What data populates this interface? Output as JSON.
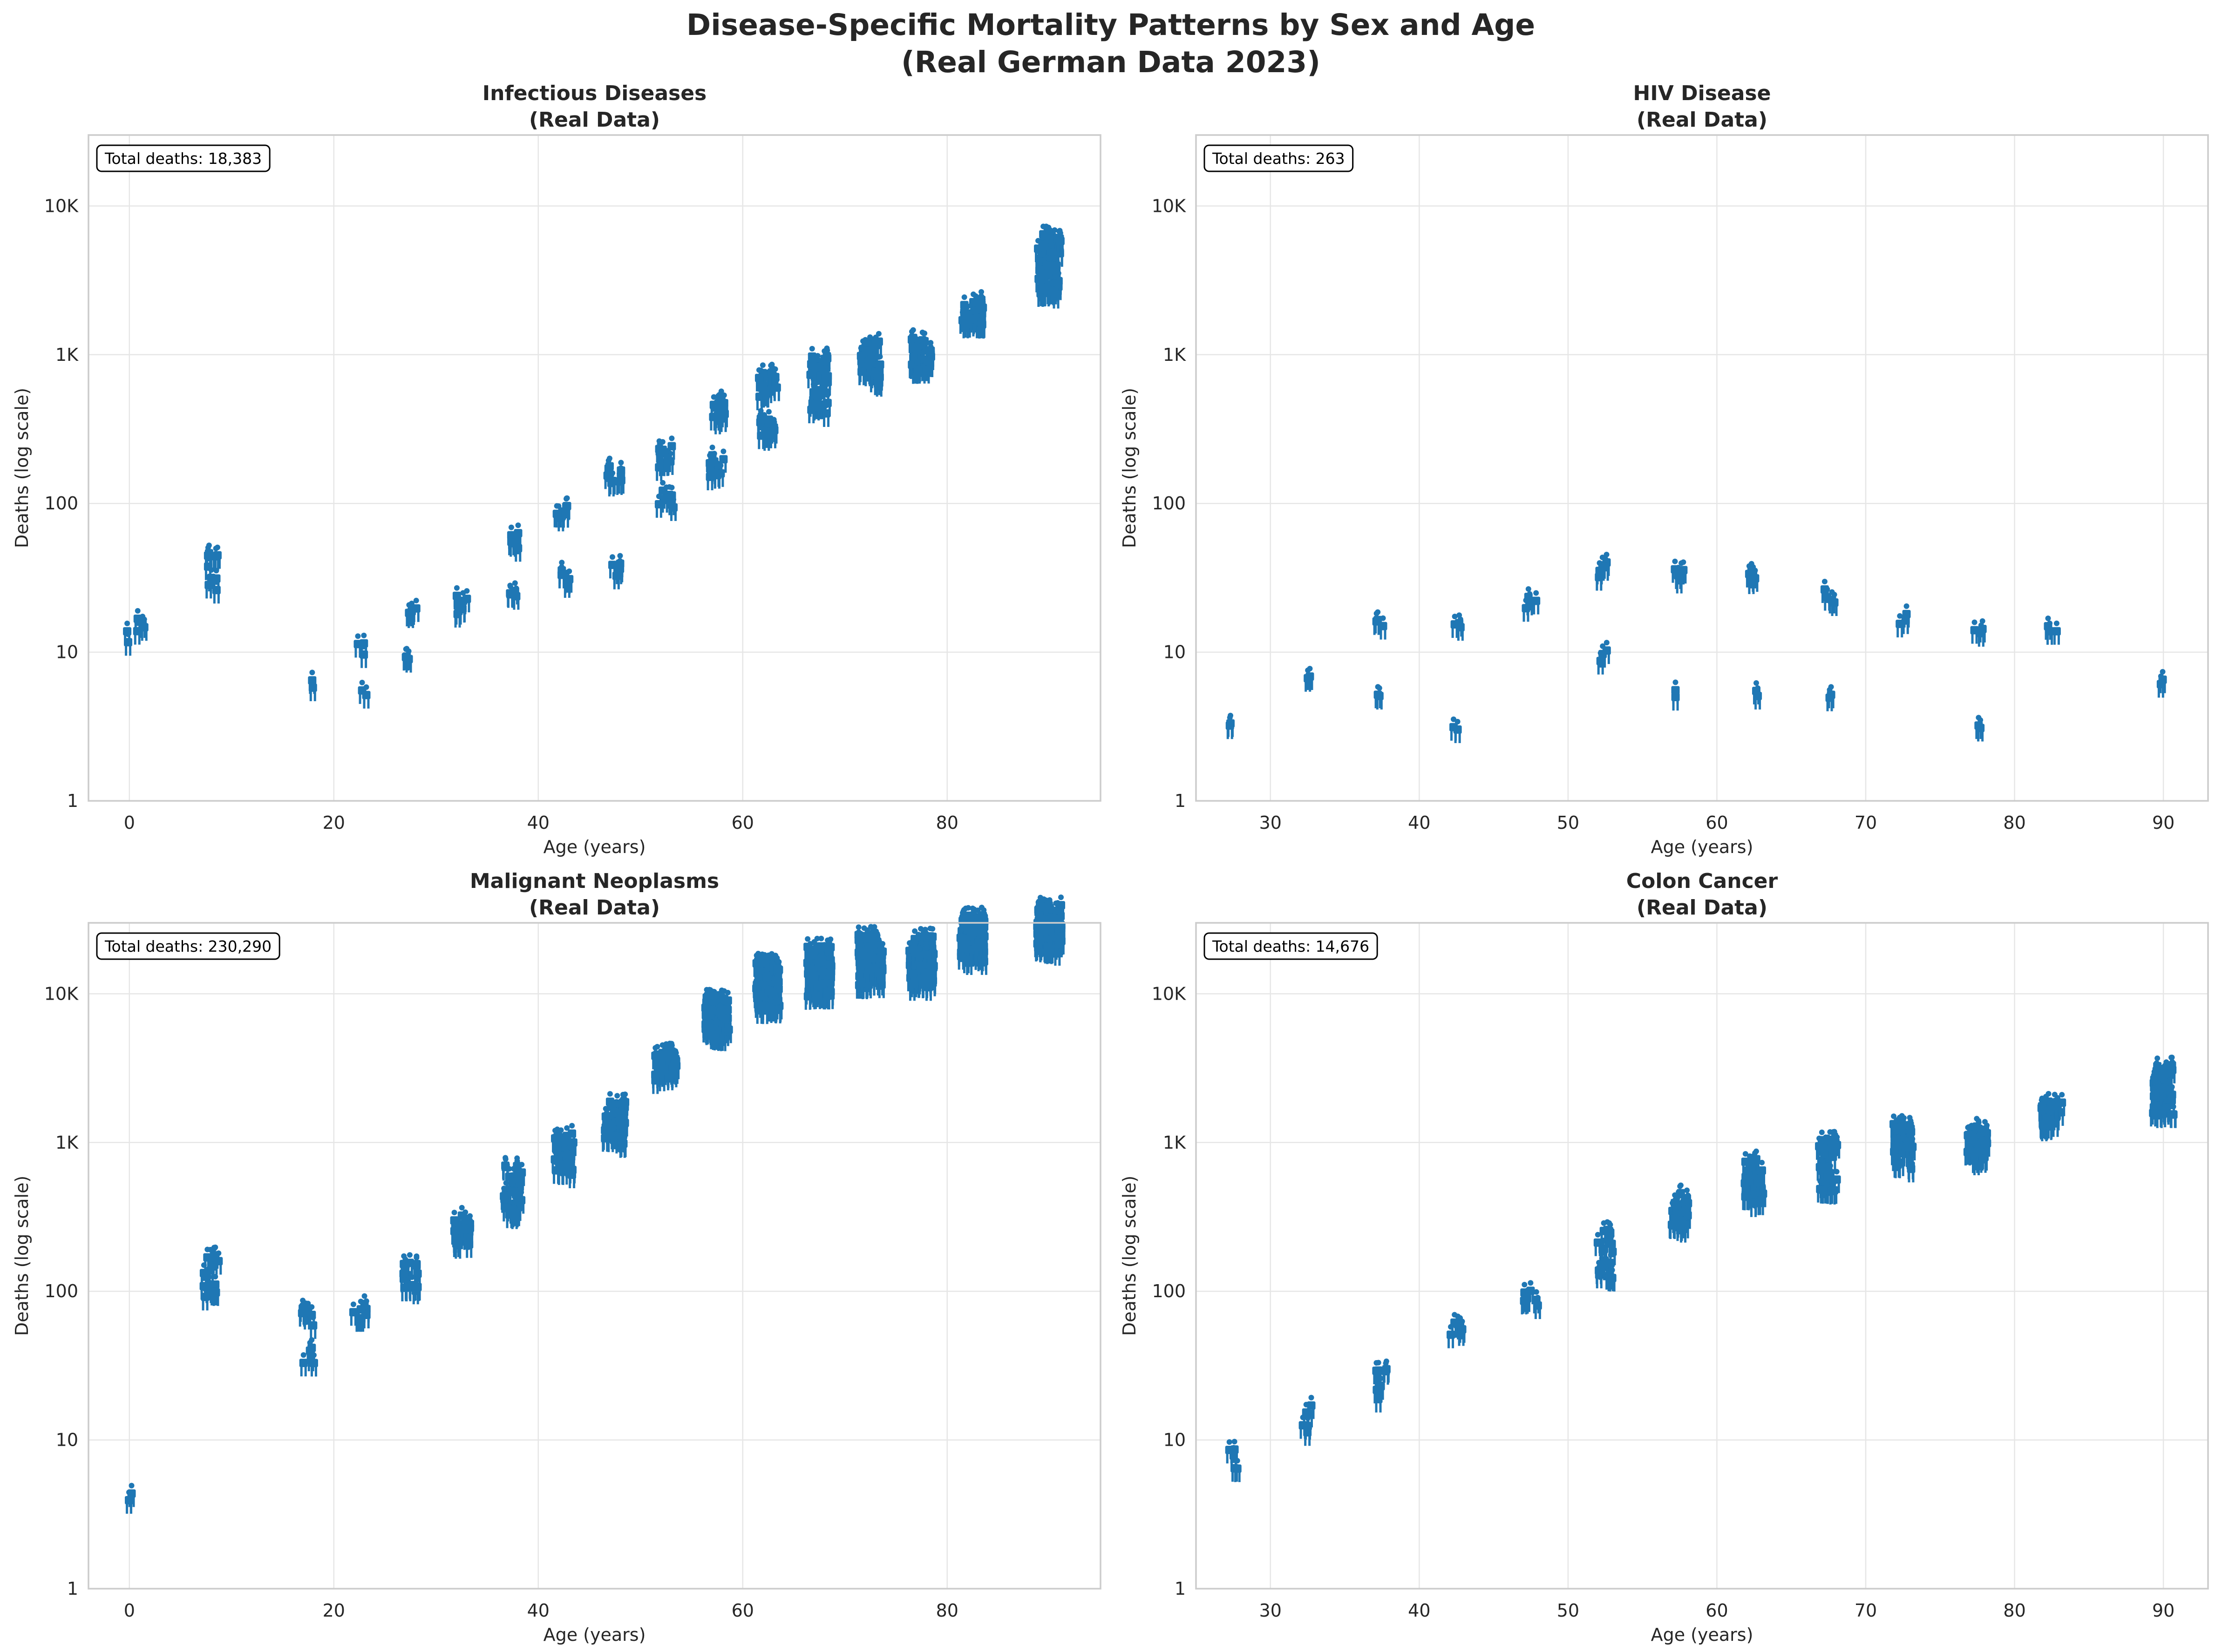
{
  "figure": {
    "title": "Disease-Specific Mortality Patterns by Sex and Age",
    "subtitle": "(Real German Data 2023)"
  },
  "chart_data": [
    {
      "type": "scatter",
      "title": "Infectious Diseases",
      "subtitle": "(Real Data)",
      "xlabel": "Age (years)",
      "ylabel": "Deaths (log scale)",
      "xlim": [
        -4,
        95
      ],
      "xticks": [
        0,
        20,
        40,
        60,
        80
      ],
      "ylim": [
        1,
        30000
      ],
      "yscale": "log",
      "yticks": [
        1,
        10,
        100,
        1000,
        10000
      ],
      "yticklabels": [
        "1",
        "10",
        "100",
        "1K",
        "10K"
      ],
      "grid": true,
      "annotation": "Total deaths: 18,383",
      "marker": "person-icon",
      "color": "#1f77b4",
      "points": [
        [
          0.3,
          12
        ],
        [
          1,
          15
        ],
        [
          8,
          39
        ],
        [
          8,
          28
        ],
        [
          17.5,
          6
        ],
        [
          22.5,
          10
        ],
        [
          23,
          5
        ],
        [
          27.5,
          18
        ],
        [
          27.5,
          9
        ],
        [
          32.5,
          21
        ],
        [
          32.5,
          17
        ],
        [
          37.5,
          55
        ],
        [
          37.5,
          23
        ],
        [
          42.5,
          80
        ],
        [
          42.5,
          31
        ],
        [
          47.5,
          145
        ],
        [
          47.5,
          35
        ],
        [
          52.5,
          195
        ],
        [
          52.5,
          103
        ],
        [
          57.5,
          400
        ],
        [
          57.5,
          170
        ],
        [
          62.5,
          600
        ],
        [
          62.5,
          300
        ],
        [
          67.5,
          770
        ],
        [
          67.5,
          465
        ],
        [
          72.5,
          960
        ],
        [
          72.5,
          700
        ],
        [
          77.5,
          1020
        ],
        [
          77.5,
          900
        ],
        [
          82.5,
          1850
        ],
        [
          90,
          4800
        ],
        [
          90,
          3000
        ]
      ]
    },
    {
      "type": "scatter",
      "title": "HIV Disease",
      "subtitle": "(Real Data)",
      "xlabel": "Age (years)",
      "ylabel": "Deaths (log scale)",
      "xlim": [
        25,
        93
      ],
      "xticks": [
        30,
        40,
        50,
        60,
        70,
        80,
        90
      ],
      "ylim": [
        1,
        30000
      ],
      "yscale": "log",
      "yticks": [
        1,
        10,
        100,
        1000,
        10000
      ],
      "yticklabels": [
        "1",
        "10",
        "100",
        "1K",
        "10K"
      ],
      "grid": true,
      "annotation": "Total deaths: 263",
      "marker": "person-icon",
      "color": "#1f77b4",
      "points": [
        [
          27.5,
          3
        ],
        [
          32.5,
          7
        ],
        [
          37.5,
          16
        ],
        [
          37.5,
          5
        ],
        [
          42.5,
          14
        ],
        [
          42.5,
          3
        ],
        [
          47.5,
          20
        ],
        [
          52.5,
          34
        ],
        [
          52.5,
          9
        ],
        [
          57.5,
          32
        ],
        [
          57.5,
          5
        ],
        [
          62.5,
          32
        ],
        [
          62.5,
          5
        ],
        [
          67.5,
          23
        ],
        [
          67.5,
          5
        ],
        [
          72.5,
          16
        ],
        [
          77.5,
          14
        ],
        [
          77.5,
          3
        ],
        [
          82.5,
          14
        ],
        [
          90,
          6
        ]
      ]
    },
    {
      "type": "scatter",
      "title": "Malignant Neoplasms",
      "subtitle": "(Real Data)",
      "xlabel": "Age (years)",
      "ylabel": "Deaths (log scale)",
      "xlim": [
        -4,
        95
      ],
      "xticks": [
        0,
        20,
        40,
        60,
        80
      ],
      "ylim": [
        1,
        30000
      ],
      "yscale": "log",
      "yticks": [
        1,
        10,
        100,
        1000,
        10000
      ],
      "yticklabels": [
        "1",
        "10",
        "100",
        "1K",
        "10K"
      ],
      "grid": true,
      "annotation": "Total deaths: 230,290",
      "marker": "person-icon",
      "color": "#1f77b4",
      "points": [
        [
          0.3,
          4
        ],
        [
          8,
          145
        ],
        [
          8,
          100
        ],
        [
          17.5,
          65
        ],
        [
          17.5,
          35
        ],
        [
          22.5,
          70
        ],
        [
          27.5,
          130
        ],
        [
          27.5,
          110
        ],
        [
          32.5,
          270
        ],
        [
          32.5,
          230
        ],
        [
          37.5,
          550
        ],
        [
          37.5,
          370
        ],
        [
          42.5,
          900
        ],
        [
          42.5,
          700
        ],
        [
          47.5,
          1450
        ],
        [
          47.5,
          1150
        ],
        [
          52.5,
          3100
        ],
        [
          57.5,
          7000
        ],
        [
          57.5,
          5800
        ],
        [
          62.5,
          12000
        ],
        [
          62.5,
          9500
        ],
        [
          67.5,
          15500
        ],
        [
          67.5,
          12000
        ],
        [
          72.5,
          18000
        ],
        [
          72.5,
          14000
        ],
        [
          77.5,
          17500
        ],
        [
          77.5,
          14000
        ],
        [
          82.5,
          24000
        ],
        [
          82.5,
          21000
        ],
        [
          90,
          28000
        ],
        [
          90,
          24000
        ]
      ]
    },
    {
      "type": "scatter",
      "title": "Colon Cancer",
      "subtitle": "(Real Data)",
      "xlabel": "Age (years)",
      "ylabel": "Deaths (log scale)",
      "xlim": [
        25,
        93
      ],
      "xticks": [
        30,
        40,
        50,
        60,
        70,
        80,
        90
      ],
      "ylim": [
        1,
        30000
      ],
      "yscale": "log",
      "yticks": [
        1,
        10,
        100,
        1000,
        10000
      ],
      "yticklabels": [
        "1",
        "10",
        "100",
        "1K",
        "10K"
      ],
      "grid": true,
      "annotation": "Total deaths: 14,676",
      "marker": "person-icon",
      "color": "#1f77b4",
      "points": [
        [
          27.5,
          8
        ],
        [
          27.5,
          6
        ],
        [
          32.5,
          15
        ],
        [
          32.5,
          11
        ],
        [
          37.5,
          27
        ],
        [
          37.5,
          20
        ],
        [
          42.5,
          55
        ],
        [
          47.5,
          85
        ],
        [
          52.5,
          210
        ],
        [
          52.5,
          135
        ],
        [
          57.5,
          390
        ],
        [
          57.5,
          290
        ],
        [
          62.5,
          620
        ],
        [
          62.5,
          450
        ],
        [
          67.5,
          860
        ],
        [
          67.5,
          540
        ],
        [
          72.5,
          1050
        ],
        [
          72.5,
          780
        ],
        [
          77.5,
          1000
        ],
        [
          77.5,
          850
        ],
        [
          82.5,
          1500
        ],
        [
          90,
          2500
        ],
        [
          90,
          1800
        ]
      ]
    }
  ]
}
